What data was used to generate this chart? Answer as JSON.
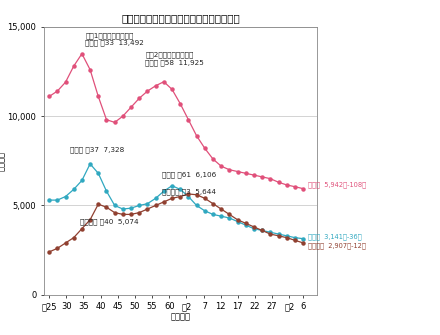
{
  "title": "《参考》各学校段階ごとの在学者数の推移",
  "ylabel": "（千人）",
  "xlabel": "（年度）",
  "ylim": [
    0,
    15000
  ],
  "background": "#ffffff",
  "grid_color": "#cccccc",
  "shogakko_color": "#e0507a",
  "chugakko_color": "#30a8c0",
  "kotogakko_color": "#904030",
  "x_labels": [
    "映25",
    "30",
    "35",
    "40",
    "45",
    "50",
    "55",
    "60",
    "并2",
    " 7",
    "12",
    "17",
    "22",
    "27",
    "令2",
    "6"
  ],
  "xtick_pos": [
    0,
    5,
    10,
    15,
    20,
    25,
    30,
    35,
    40,
    45,
    50,
    55,
    60,
    65,
    70,
    74
  ],
  "shogakko": [
    11100,
    11400,
    11900,
    12800,
    13492,
    12600,
    11100,
    9800,
    9650,
    10000,
    10500,
    11000,
    11400,
    11700,
    11925,
    11500,
    10700,
    9800,
    8900,
    8200,
    7600,
    7200,
    7000,
    6900,
    6800,
    6700,
    6600,
    6500,
    6300,
    6150,
    6050,
    5942
  ],
  "chugakko": [
    5300,
    5300,
    5500,
    5900,
    6400,
    7328,
    6800,
    5800,
    5000,
    4800,
    4850,
    5000,
    5100,
    5400,
    5800,
    6106,
    5900,
    5500,
    5000,
    4700,
    4500,
    4400,
    4300,
    4100,
    3900,
    3700,
    3600,
    3500,
    3400,
    3300,
    3200,
    3141
  ],
  "kotogakko": [
    2400,
    2600,
    2900,
    3200,
    3700,
    4200,
    5074,
    4900,
    4600,
    4500,
    4500,
    4600,
    4800,
    5000,
    5200,
    5400,
    5500,
    5644,
    5600,
    5400,
    5100,
    4800,
    4500,
    4200,
    4000,
    3800,
    3600,
    3400,
    3300,
    3200,
    3050,
    2907
  ],
  "anno1_text": "《第1次ベビーブーム》\n小学校 映33  13,492",
  "anno2_text": "《第2次ベビーブーム》\n小学校 映58  11,925",
  "anno3_text": "中学校 映37  7,328",
  "anno4_text": "高等学校 映40  5,074",
  "anno5_text": "中学校 映61  6,106",
  "anno6_text": "高等学校 帔3  5,644",
  "label_shogakko": "小学校  5,942（-108）",
  "label_chugakko": "中学校  3,141（-36）",
  "label_kotogakko": "高等学校  2,907（-12）"
}
